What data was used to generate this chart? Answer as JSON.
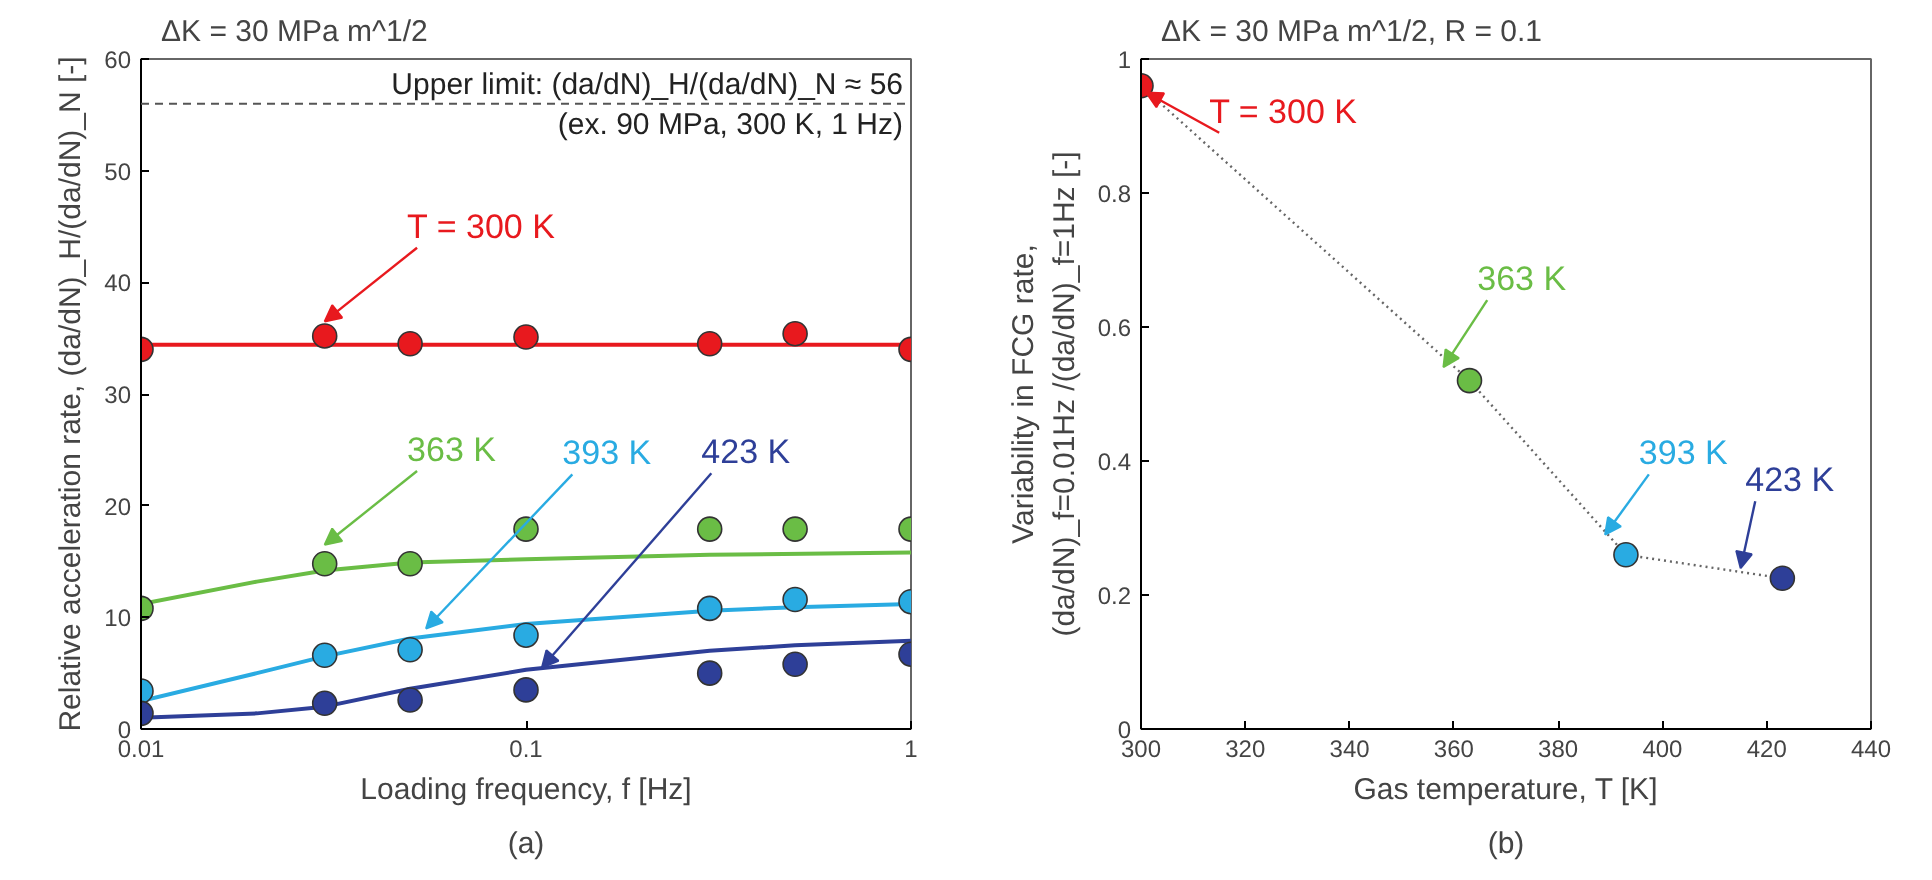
{
  "chart_data": [
    {
      "type": "scatter",
      "title": "ΔK = 30 MPa m^1/2",
      "xlabel": "Loading frequency, f [Hz]",
      "ylabel": "Relative acceleration rate, (da/dN)_H/(da/dN)_N [-]",
      "log": "x",
      "xlim": [
        0.01,
        1
      ],
      "xticks": [
        0.01,
        0.1,
        1
      ],
      "ylim": [
        0,
        60
      ],
      "yticks": [
        0,
        10,
        20,
        30,
        40,
        50,
        60
      ],
      "grid": false,
      "marker": "circle",
      "x": [
        0.01,
        0.03,
        0.05,
        0.1,
        0.3,
        0.5,
        1
      ],
      "series": [
        {
          "type": "line",
          "color": "#e8191e",
          "x": [
            0.01,
            1
          ],
          "values": [
            34.4,
            34.4
          ],
          "line_style": "solid",
          "marker": "none"
        },
        {
          "type": "line",
          "color": "#6abd45",
          "x": [
            0.01,
            0.02,
            0.03,
            0.05,
            0.1,
            0.3,
            1
          ],
          "values": [
            11.2,
            13.2,
            14.2,
            14.9,
            15.2,
            15.6,
            15.8
          ],
          "line_style": "solid",
          "marker": "none"
        },
        {
          "type": "line",
          "color": "#29abe2",
          "x": [
            0.01,
            0.02,
            0.03,
            0.05,
            0.1,
            0.3,
            0.5,
            1
          ],
          "values": [
            2.5,
            5.0,
            6.5,
            8.1,
            9.4,
            10.6,
            10.9,
            11.2
          ],
          "line_style": "solid",
          "marker": "none"
        },
        {
          "type": "line",
          "color": "#2e3f98",
          "x": [
            0.01,
            0.02,
            0.03,
            0.05,
            0.1,
            0.3,
            0.5,
            1
          ],
          "values": [
            1.0,
            1.4,
            2.0,
            3.6,
            5.3,
            7.0,
            7.5,
            7.9
          ],
          "line_style": "solid",
          "marker": "none"
        },
        {
          "color": "#e8191e",
          "values": [
            34,
            35.2,
            34.5,
            35.1,
            34.5,
            35.4,
            34
          ]
        },
        {
          "color": "#6abd45",
          "values": [
            10.8,
            14.8,
            14.8,
            17.9,
            17.9,
            17.9,
            17.9
          ]
        },
        {
          "color": "#29abe2",
          "values": [
            3.4,
            6.6,
            7.1,
            8.4,
            10.8,
            11.6,
            11.4
          ]
        },
        {
          "color": "#2e3f98",
          "values": [
            1.4,
            2.3,
            2.6,
            3.5,
            5,
            5.8,
            6.7
          ]
        }
      ],
      "ref_lines": [
        {
          "axis": "y",
          "value": 56,
          "label": "Upper limit: (da/dN)_H/(da/dN)_N ≈ 56\n(ex. 90 MPa, 300 K, 1 Hz)",
          "color": "#555555",
          "line_style": "dashed"
        }
      ],
      "annotations": [
        {
          "text": "T = 300 K",
          "x": 0.03,
          "y": 36.5
        },
        {
          "text": "363 K",
          "x": 0.03,
          "y": 16.5
        },
        {
          "text": "393 K",
          "x": 0.055,
          "y": 9
        },
        {
          "text": "423 K",
          "x": 0.11,
          "y": 5.5
        },
        "(a)"
      ]
    },
    {
      "type": "scatter",
      "title": "ΔK = 30 MPa m^1/2, R = 0.1",
      "xlabel": "Gas temperature, T [K]",
      "ylabel": "Variability in FCG rate,\n(da/dN)_f=0.01Hz /(da/dN)_f=1Hz [-]",
      "xlim": [
        300,
        440
      ],
      "xticks": [
        300,
        320,
        340,
        360,
        380,
        400,
        420,
        440
      ],
      "ylim": [
        0,
        1
      ],
      "yticks": [
        0,
        0.2,
        0.4,
        0.6,
        0.8,
        1
      ],
      "grid": false,
      "marker": "circle",
      "x": [
        300,
        363,
        393,
        423
      ],
      "series": [
        {
          "type": "line",
          "color": "#666666",
          "values": [
            0.96,
            0.52,
            0.26,
            0.225
          ],
          "line_style": "dotted",
          "marker": "none"
        },
        {
          "colors": [
            "#e8191e",
            "#6abd45",
            "#29abe2",
            "#2e3f98"
          ],
          "values": [
            0.96,
            0.52,
            0.26,
            0.225
          ]
        }
      ],
      "annotations": [
        {
          "text": "T = 300 K",
          "x": 301,
          "y": 0.95
        },
        {
          "text": "363 K",
          "x": 358,
          "y": 0.54
        },
        {
          "text": "393 K",
          "x": 389,
          "y": 0.29
        },
        {
          "text": "423 K",
          "x": 415,
          "y": 0.24
        },
        "(b)"
      ]
    }
  ]
}
